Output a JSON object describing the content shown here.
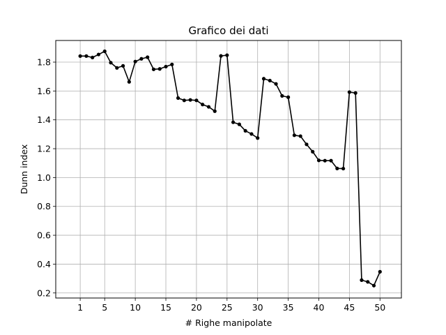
{
  "chart_data": {
    "type": "line",
    "title": "Grafico dei dati",
    "xlabel": "# Righe manipolate",
    "ylabel": "Dunn index",
    "xlim": [
      -3.0,
      53.5
    ],
    "ylim": [
      0.165,
      1.95
    ],
    "x_ticks": [
      1,
      5,
      10,
      15,
      20,
      25,
      30,
      35,
      40,
      45,
      50
    ],
    "y_ticks": [
      0.2,
      0.4,
      0.6,
      0.8,
      1.0,
      1.2,
      1.4,
      1.6,
      1.8
    ],
    "y_tick_labels": [
      "0.2",
      "0.4",
      "0.6",
      "0.8",
      "1.0",
      "1.2",
      "1.4",
      "1.6",
      "1.8"
    ],
    "grid": true,
    "color": "#000000",
    "series": [
      {
        "x": [
          1,
          2,
          3,
          4,
          5,
          6,
          7,
          8,
          9,
          10,
          11,
          12,
          13,
          14,
          15,
          16,
          17,
          18,
          19,
          20,
          21,
          22,
          23,
          24,
          25,
          26,
          27,
          28,
          29,
          30,
          31,
          32,
          33,
          34,
          35,
          36,
          37,
          38,
          39,
          40,
          41,
          42,
          43,
          44,
          45,
          46,
          47,
          48,
          49,
          50
        ],
        "values": [
          1.842,
          1.842,
          1.832,
          1.853,
          1.875,
          1.796,
          1.76,
          1.774,
          1.663,
          1.804,
          1.823,
          1.834,
          1.75,
          1.753,
          1.769,
          1.784,
          1.551,
          1.535,
          1.538,
          1.535,
          1.506,
          1.49,
          1.46,
          1.843,
          1.848,
          1.383,
          1.369,
          1.324,
          1.302,
          1.274,
          1.685,
          1.672,
          1.649,
          1.566,
          1.557,
          1.293,
          1.287,
          1.23,
          1.179,
          1.119,
          1.117,
          1.117,
          1.063,
          1.062,
          1.592,
          1.586,
          0.289,
          0.277,
          0.251,
          0.347
        ]
      }
    ]
  }
}
